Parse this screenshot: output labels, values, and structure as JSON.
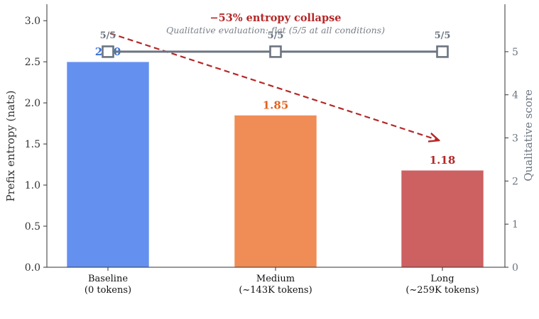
{
  "chart_data": {
    "type": "bar",
    "categories": [
      {
        "line1": "Baseline",
        "line2": "(0 tokens)"
      },
      {
        "line1": "Medium",
        "line2": "(~143K tokens)"
      },
      {
        "line1": "Long",
        "line2": "(~259K tokens)"
      }
    ],
    "entropy": {
      "values": [
        2.5,
        1.85,
        1.18
      ],
      "value_labels": [
        "2.50",
        "1.85",
        "1.18"
      ],
      "bar_colors": [
        "#6490f0",
        "#f08c55",
        "#cd6060"
      ],
      "label_colors": [
        "#3a6fd8",
        "#e0641e",
        "#b42828"
      ]
    },
    "qualitative": {
      "values": [
        5,
        5,
        5
      ],
      "point_labels": [
        "5/5",
        "5/5",
        "5/5"
      ],
      "color": "#6b7480"
    },
    "left_axis": {
      "label": "Prefix entropy (nats)",
      "ylim": [
        0,
        3.2
      ],
      "ticks": [
        "0.0",
        "0.5",
        "1.0",
        "1.5",
        "2.0",
        "2.5",
        "3.0"
      ],
      "tick_values": [
        0,
        0.5,
        1.0,
        1.5,
        2.0,
        2.5,
        3.0
      ]
    },
    "right_axis": {
      "label": "Qualitative score",
      "ylim": [
        0,
        6.1
      ],
      "ticks": [
        "0",
        "1",
        "2",
        "3",
        "4",
        "5"
      ],
      "tick_values": [
        0,
        1,
        2,
        3,
        4,
        5
      ],
      "color": "#6b7480"
    },
    "annotations": {
      "title": "−53% entropy collapse",
      "title_color": "#b42828",
      "subtitle": "Qualitative evaluation: flat (5/5 at all conditions)",
      "subtitle_color": "#7a7f88",
      "trend_arrow_color": "#b42828"
    }
  }
}
